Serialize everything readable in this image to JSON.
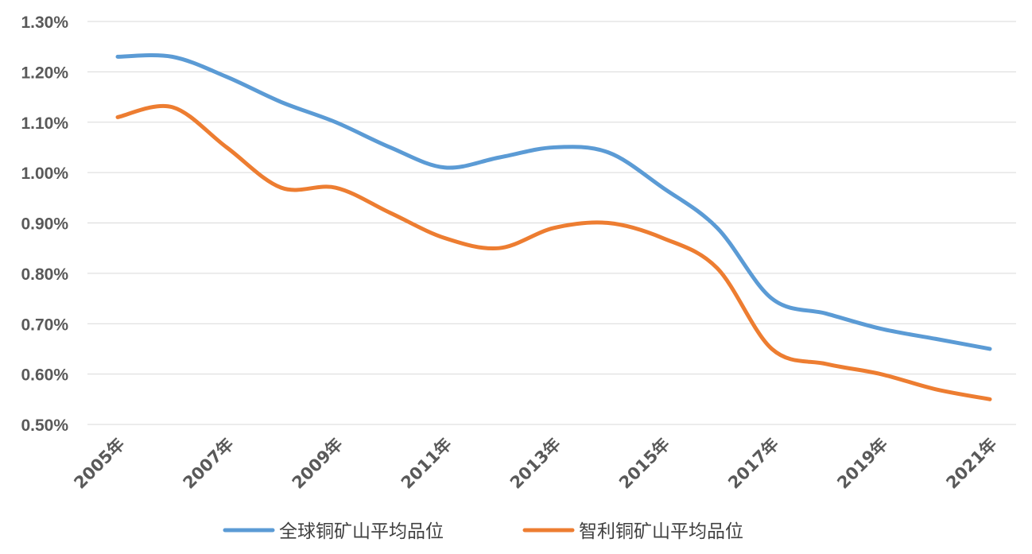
{
  "chart_data": {
    "type": "line",
    "title": "",
    "xlabel": "",
    "ylabel": "",
    "x": [
      "2005年",
      "2006年",
      "2007年",
      "2008年",
      "2009年",
      "2010年",
      "2011年",
      "2012年",
      "2013年",
      "2014年",
      "2015年",
      "2016年",
      "2017年",
      "2018年",
      "2019年",
      "2020年",
      "2021年"
    ],
    "x_tick_labels": [
      "2005年",
      "2007年",
      "2009年",
      "2011年",
      "2013年",
      "2015年",
      "2017年",
      "2019年",
      "2021年"
    ],
    "ylim": [
      0.5,
      1.3
    ],
    "y_ticks": [
      0.5,
      0.6,
      0.7,
      0.8,
      0.9,
      1.0,
      1.1,
      1.2,
      1.3
    ],
    "y_tick_labels": [
      "0.50%",
      "0.60%",
      "0.70%",
      "0.80%",
      "0.90%",
      "1.00%",
      "1.10%",
      "1.20%",
      "1.30%"
    ],
    "grid": true,
    "legend_position": "bottom",
    "series": [
      {
        "name": "全球铜矿山平均品位",
        "color": "#5b9bd5",
        "values": [
          1.23,
          1.23,
          1.19,
          1.14,
          1.1,
          1.05,
          1.01,
          1.03,
          1.05,
          1.04,
          0.97,
          0.89,
          0.75,
          0.72,
          0.69,
          0.67,
          0.65
        ]
      },
      {
        "name": "智利铜矿山平均品位",
        "color": "#ed7d31",
        "values": [
          1.11,
          1.13,
          1.05,
          0.97,
          0.97,
          0.92,
          0.87,
          0.85,
          0.89,
          0.9,
          0.87,
          0.81,
          0.65,
          0.62,
          0.6,
          0.57,
          0.55
        ]
      }
    ]
  }
}
